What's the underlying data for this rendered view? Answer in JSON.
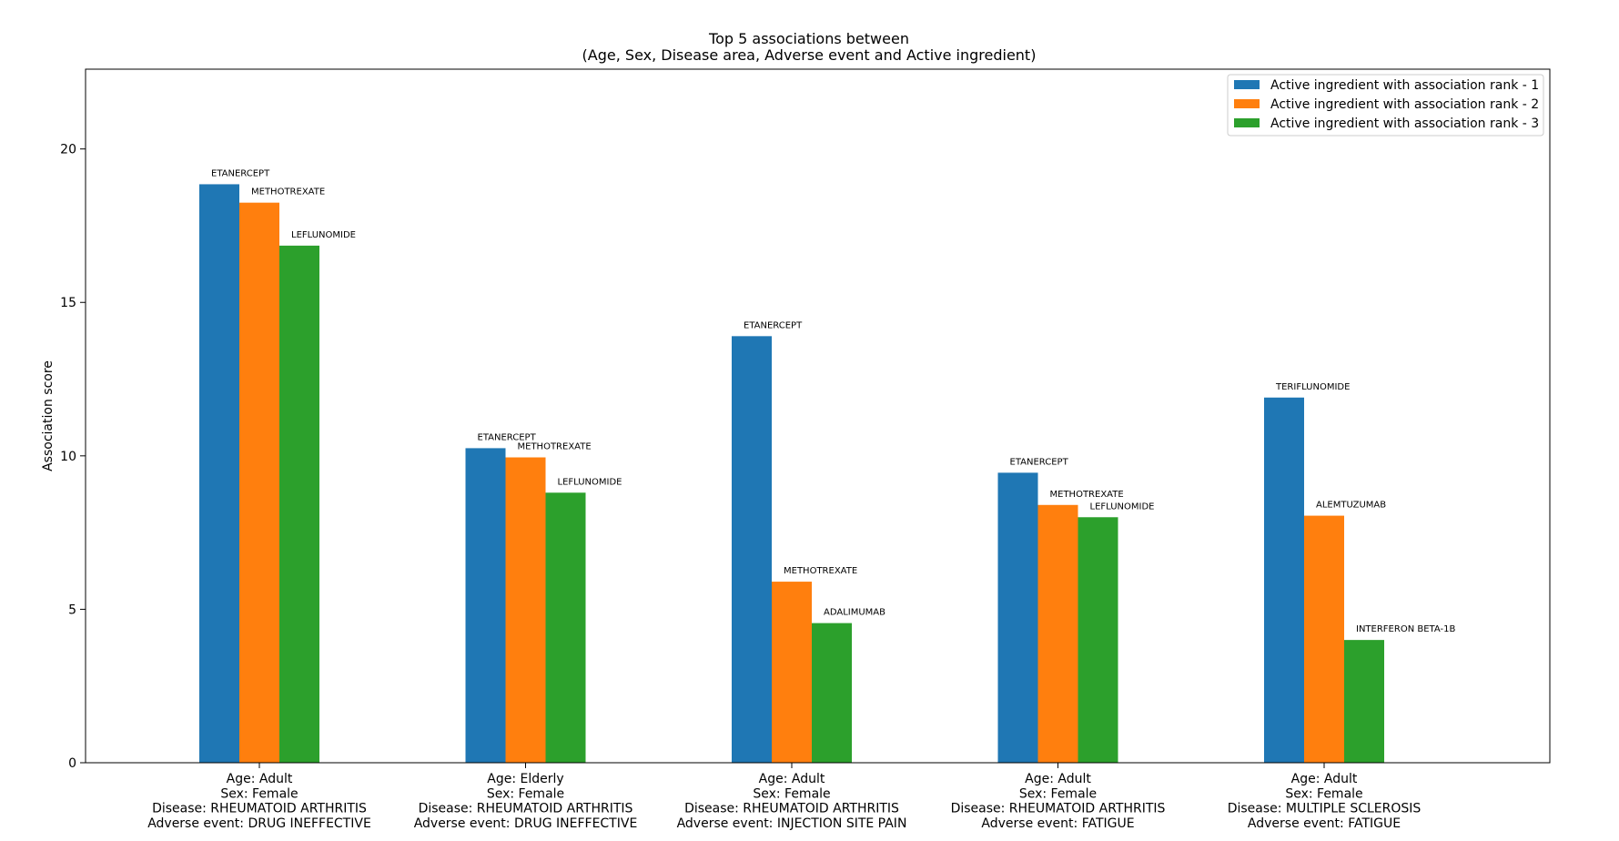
{
  "chart_data": {
    "type": "bar",
    "title": [
      "Top 5 associations between",
      "(Age, Sex, Disease area, Adverse event and Active ingredient)"
    ],
    "ylabel": "Association score",
    "xlabel": "",
    "ylim": [
      0,
      22.6
    ],
    "yticks": [
      0,
      5,
      10,
      15,
      20
    ],
    "grid": false,
    "legend_position": "top-right",
    "categories": [
      [
        "Age: Adult",
        "Sex: Female",
        "Disease: RHEUMATOID ARTHRITIS",
        "Adverse event: DRUG INEFFECTIVE"
      ],
      [
        "Age: Elderly",
        "Sex: Female",
        "Disease: RHEUMATOID ARTHRITIS",
        "Adverse event: DRUG INEFFECTIVE"
      ],
      [
        "Age: Adult",
        "Sex: Female",
        "Disease: RHEUMATOID ARTHRITIS",
        "Adverse event: INJECTION SITE PAIN"
      ],
      [
        "Age: Adult",
        "Sex: Female",
        "Disease: RHEUMATOID ARTHRITIS",
        "Adverse event: FATIGUE"
      ],
      [
        "Age: Adult",
        "Sex: Female",
        "Disease: MULTIPLE SCLEROSIS",
        "Adverse event: FATIGUE"
      ]
    ],
    "series": [
      {
        "name": "Active ingredient with association rank - 1",
        "color": "#1f77b4",
        "values": [
          18.85,
          10.25,
          13.9,
          9.45,
          11.9
        ],
        "labels": [
          "ETANERCEPT",
          "ETANERCEPT",
          "ETANERCEPT",
          "ETANERCEPT",
          "TERIFLUNOMIDE"
        ]
      },
      {
        "name": "Active ingredient with association rank - 2",
        "color": "#ff7f0e",
        "values": [
          18.25,
          9.95,
          5.9,
          8.4,
          8.05
        ],
        "labels": [
          "METHOTREXATE",
          "METHOTREXATE",
          "METHOTREXATE",
          "METHOTREXATE",
          "ALEMTUZUMAB"
        ]
      },
      {
        "name": "Active ingredient with association rank - 3",
        "color": "#2ca02c",
        "values": [
          16.85,
          8.8,
          4.55,
          8.0,
          4.0
        ],
        "labels": [
          "LEFLUNOMIDE",
          "LEFLUNOMIDE",
          "ADALIMUMAB",
          "LEFLUNOMIDE",
          "INTERFERON BETA-1B"
        ]
      }
    ]
  }
}
